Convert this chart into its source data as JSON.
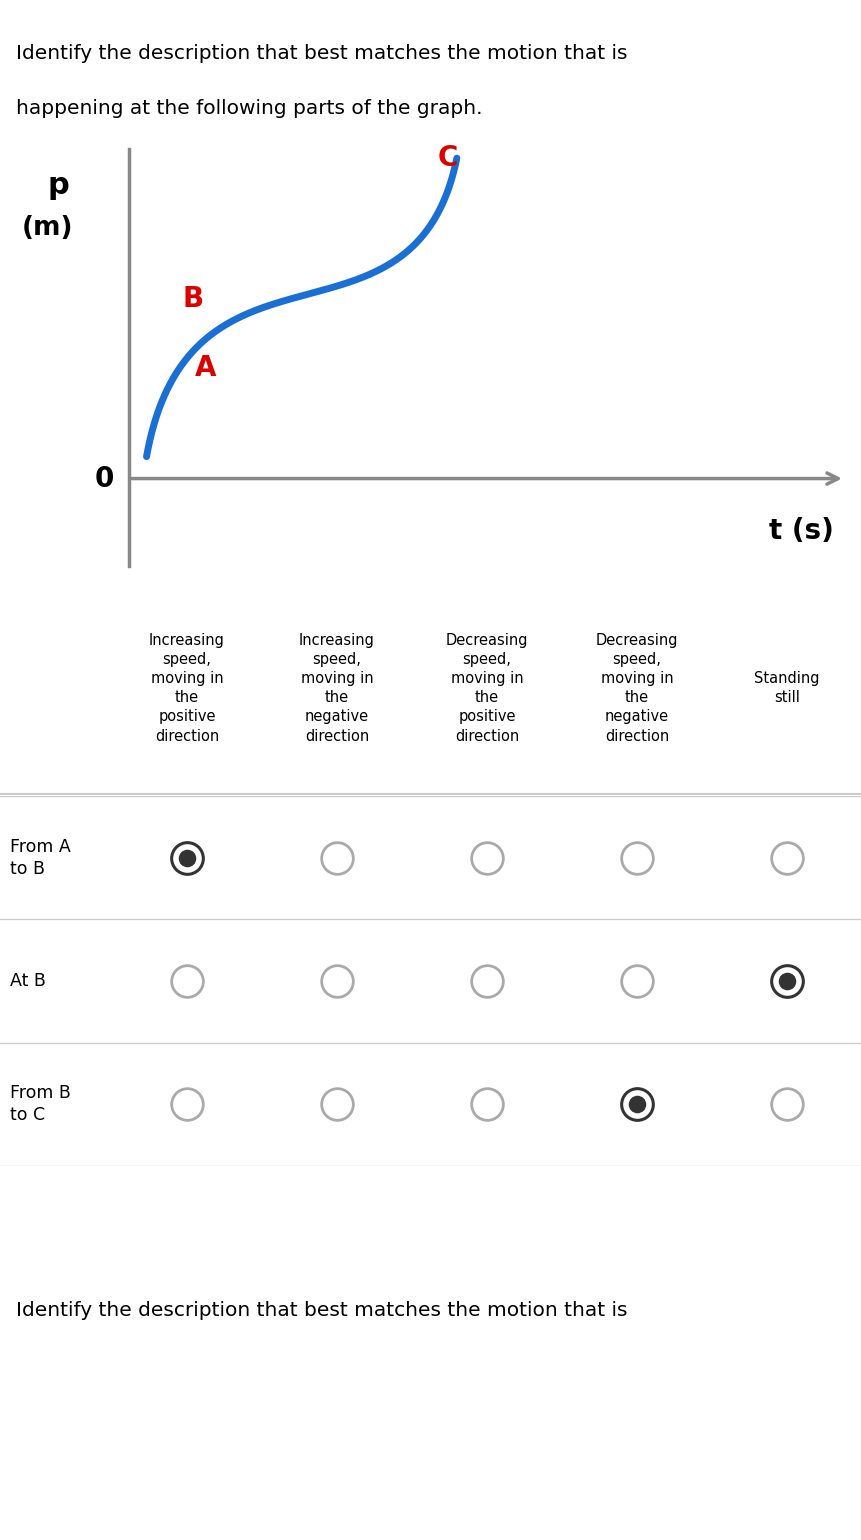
{
  "title_line1": "Identify the description that best matches the motion that is",
  "title_line2": "happening at the following parts of the graph.",
  "footer_text": "Identify the description that best matches the motion that is",
  "ylabel_p": "p",
  "ylabel_m": "(m)",
  "xlabel": "t (s)",
  "curve_color": "#1a6fd4",
  "label_A": "A",
  "label_B": "B",
  "label_C": "C",
  "label_color_ABC": "#dd0000",
  "label_0": "0",
  "col_headers": [
    "Increasing\nspeed,\nmoving in\nthe\npositive\ndirection",
    "Increasing\nspeed,\nmoving in\nthe\nnegative\ndirection",
    "Decreasing\nspeed,\nmoving in\nthe\npositive\ndirection",
    "Decreasing\nspeed,\nmoving in\nthe\nnegative\ndirection",
    "Standing\nstill"
  ],
  "row_labels": [
    "From A\nto B",
    "At B",
    "From B\nto C"
  ],
  "row_bg_colors": [
    "#fce8e8",
    "#e8f5e8",
    "#fce8e8"
  ],
  "selected": [
    0,
    4,
    3
  ],
  "radio_color_selected": "#333333",
  "radio_color_unselected": "#aaaaaa",
  "separator_color": "#cccccc",
  "footer_bg": "#dcdcee",
  "axis_color": "#888888",
  "background": "#ffffff"
}
